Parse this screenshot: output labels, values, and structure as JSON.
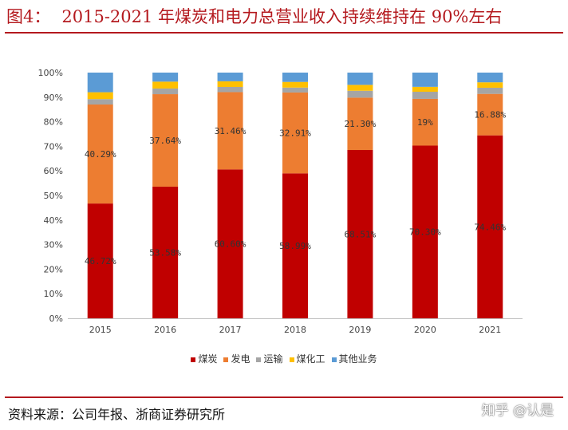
{
  "header": {
    "fig_label": "图4：",
    "title": "2015-2021 年煤炭和电力总营业收入持续维持在 90%左右"
  },
  "footer": {
    "source": "资料来源：公司年报、浙商证券研究所",
    "watermark": "知乎 @认是"
  },
  "chart_data": {
    "type": "bar",
    "stacked": true,
    "categories": [
      "2015",
      "2016",
      "2017",
      "2018",
      "2019",
      "2020",
      "2021"
    ],
    "y_ticks": [
      "0%",
      "10%",
      "20%",
      "30%",
      "40%",
      "50%",
      "60%",
      "70%",
      "80%",
      "90%",
      "100%"
    ],
    "ylim": [
      0,
      100
    ],
    "legend_position": "bottom",
    "series": [
      {
        "name": "煤炭",
        "color": "#c00000",
        "values": [
          46.72,
          53.58,
          60.6,
          58.99,
          68.51,
          70.3,
          74.46
        ],
        "labels": [
          "46.72%",
          "53.58%",
          "60.60%",
          "58.99%",
          "68.51%",
          "70.30%",
          "74.46%"
        ]
      },
      {
        "name": "发电",
        "color": "#ed7d31",
        "values": [
          40.29,
          37.64,
          31.46,
          32.91,
          21.3,
          19.0,
          16.88
        ],
        "labels": [
          "40.29%",
          "37.64%",
          "31.46%",
          "32.91%",
          "21.30%",
          "19%",
          "16.88%"
        ]
      },
      {
        "name": "运输",
        "color": "#a5a5a5",
        "values": [
          2.2,
          2.3,
          2.1,
          2.0,
          2.8,
          2.9,
          2.5
        ]
      },
      {
        "name": "煤化工",
        "color": "#ffc000",
        "values": [
          2.8,
          2.8,
          2.3,
          2.3,
          2.4,
          2.0,
          2.2
        ]
      },
      {
        "name": "其他业务",
        "color": "#5b9bd5",
        "values": [
          7.99,
          3.68,
          3.54,
          3.8,
          4.99,
          5.8,
          3.96
        ]
      }
    ]
  }
}
